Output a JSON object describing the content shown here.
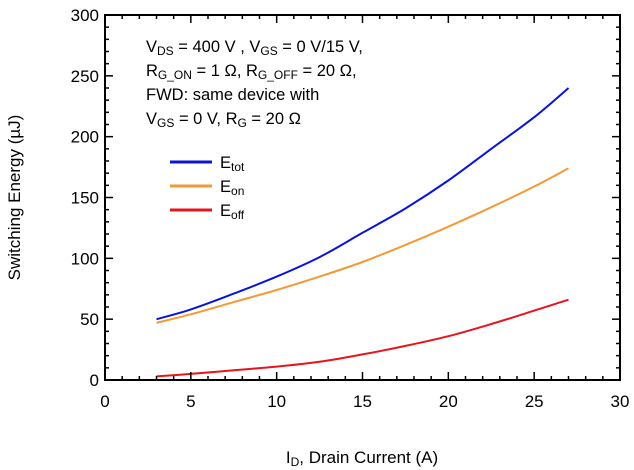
{
  "chart_data": {
    "type": "line",
    "title": "",
    "xlabel": {
      "main": "I",
      "sub": "D",
      "rest": ", Drain Current (A)"
    },
    "ylabel": "Switching Energy (µJ)",
    "xlim": [
      0,
      30
    ],
    "ylim": [
      0,
      300
    ],
    "xticks": [
      "0",
      "5",
      "10",
      "15",
      "20",
      "25",
      "30"
    ],
    "yticks": [
      "0",
      "50",
      "100",
      "150",
      "200",
      "250",
      "300"
    ],
    "grid": false,
    "legend_position": "upper-left",
    "annotation": [
      [
        {
          "t": "V"
        },
        {
          "t": "DS",
          "sub": true
        },
        {
          "t": " = 400 V , V"
        },
        {
          "t": "GS",
          "sub": true
        },
        {
          "t": " = 0 V/15 V,"
        }
      ],
      [
        {
          "t": "R"
        },
        {
          "t": "G_ON",
          "sub": true
        },
        {
          "t": " = 1 Ω, R"
        },
        {
          "t": "G_OFF",
          "sub": true
        },
        {
          "t": " = 20 Ω,"
        }
      ],
      [
        {
          "t": "FWD: same device with"
        }
      ],
      [
        {
          "t": "V"
        },
        {
          "t": "GS",
          "sub": true
        },
        {
          "t": " = 0 V, R"
        },
        {
          "t": "G",
          "sub": true
        },
        {
          "t": " = 20 Ω"
        }
      ]
    ],
    "series": [
      {
        "name": "E",
        "sub": "tot",
        "color": "#0a14d6",
        "x": [
          3,
          5,
          7.5,
          10,
          12.5,
          15,
          17.5,
          20,
          22.5,
          25,
          27
        ],
        "y": [
          50,
          58,
          71,
          85,
          101,
          121,
          141,
          164,
          190,
          216,
          240
        ]
      },
      {
        "name": "E",
        "sub": "on",
        "color": "#f39a35",
        "x": [
          3,
          5,
          7.5,
          10,
          12.5,
          15,
          17.5,
          20,
          22.5,
          25,
          27
        ],
        "y": [
          47,
          54,
          64,
          74,
          85,
          97,
          111,
          126,
          142,
          159,
          174
        ]
      },
      {
        "name": "E",
        "sub": "off",
        "color": "#e8141c",
        "x": [
          3,
          5,
          7.5,
          10,
          12.5,
          15,
          17.5,
          20,
          22.5,
          25,
          27
        ],
        "y": [
          3,
          5,
          8,
          11,
          15,
          21,
          28,
          36,
          46,
          57,
          66
        ]
      }
    ]
  }
}
